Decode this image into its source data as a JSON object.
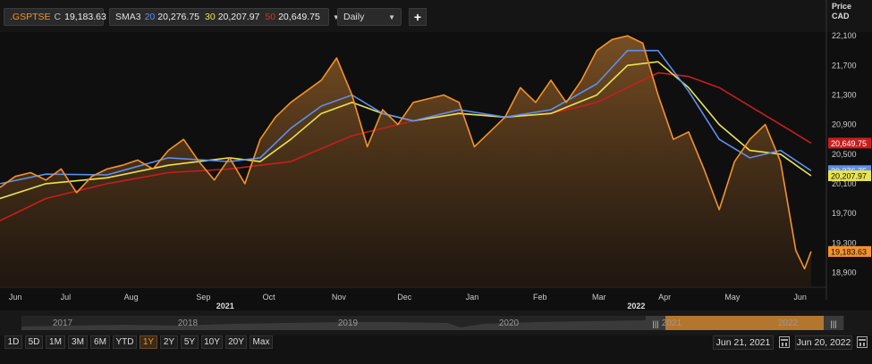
{
  "legend": {
    "symbol": ".GSPTSE",
    "close_prefix": "C",
    "close_value": "19,183.63",
    "sma_label": "SMA3",
    "sma_periods": [
      "20",
      "30",
      "50"
    ],
    "sma_values": [
      "20,276.75",
      "20,207.97",
      "20,649.75"
    ]
  },
  "interval": {
    "selected": "Daily"
  },
  "navigator_years": [
    "2017",
    "2018",
    "2019",
    "2020",
    "2021",
    "2022"
  ],
  "ranges": [
    "1D",
    "5D",
    "1M",
    "3M",
    "6M",
    "YTD",
    "1Y",
    "2Y",
    "5Y",
    "10Y",
    "20Y",
    "Max"
  ],
  "active_range": "1Y",
  "date_from": "Jun 21, 2021",
  "date_to": "Jun 20, 2022",
  "colors": {
    "price": "#f4922b",
    "sma20": "#5c8ff0",
    "sma30": "#e8e450",
    "sma50": "#c81e1e",
    "background": "#0f0f0f"
  },
  "chart_data": {
    "type": "area",
    "title": "",
    "ylabel": "Price",
    "ylabel_unit": "CAD",
    "ylim": [
      18700,
      22150
    ],
    "y_ticks": [
      22100,
      21700,
      21300,
      20900,
      20500,
      20100,
      19700,
      19300,
      18900
    ],
    "y_tick_labels": [
      "22,100",
      "21,700",
      "21,300",
      "20,900",
      "20,500",
      "20,100",
      "19,700",
      "19,300",
      "18,900"
    ],
    "xlim": [
      "2021-06-14",
      "2022-06-27"
    ],
    "x_ticks": [
      {
        "label": "Jun",
        "date": "2021-06-21"
      },
      {
        "label": "Jul",
        "date": "2021-07-14"
      },
      {
        "label": "Aug",
        "date": "2021-08-13"
      },
      {
        "label": "Sep",
        "date": "2021-09-15"
      },
      {
        "label": "Oct",
        "date": "2021-10-15"
      },
      {
        "label": "Nov",
        "date": "2021-11-16"
      },
      {
        "label": "Dec",
        "date": "2021-12-16"
      },
      {
        "label": "Jan",
        "date": "2022-01-16"
      },
      {
        "label": "Feb",
        "date": "2022-02-16"
      },
      {
        "label": "Mar",
        "date": "2022-03-15"
      },
      {
        "label": "Apr",
        "date": "2022-04-14"
      },
      {
        "label": "May",
        "date": "2022-05-15"
      },
      {
        "label": "Jun",
        "date": "2022-06-15"
      }
    ],
    "year_labels": [
      {
        "label": "2021",
        "date": "2021-09-25"
      },
      {
        "label": "2022",
        "date": "2022-04-01"
      }
    ],
    "grid": false,
    "series": [
      {
        "name": ".GSPTSE",
        "style": "area",
        "points": [
          [
            "2021-06-14",
            20050
          ],
          [
            "2021-06-21",
            20200
          ],
          [
            "2021-06-28",
            20250
          ],
          [
            "2021-07-05",
            20150
          ],
          [
            "2021-07-12",
            20300
          ],
          [
            "2021-07-19",
            19980
          ],
          [
            "2021-07-26",
            20200
          ],
          [
            "2021-08-02",
            20300
          ],
          [
            "2021-08-09",
            20350
          ],
          [
            "2021-08-16",
            20420
          ],
          [
            "2021-08-23",
            20300
          ],
          [
            "2021-08-30",
            20550
          ],
          [
            "2021-09-06",
            20700
          ],
          [
            "2021-09-13",
            20400
          ],
          [
            "2021-09-20",
            20150
          ],
          [
            "2021-09-27",
            20450
          ],
          [
            "2021-10-04",
            20100
          ],
          [
            "2021-10-11",
            20700
          ],
          [
            "2021-10-18",
            21000
          ],
          [
            "2021-10-25",
            21200
          ],
          [
            "2021-11-01",
            21350
          ],
          [
            "2021-11-08",
            21500
          ],
          [
            "2021-11-15",
            21800
          ],
          [
            "2021-11-22",
            21300
          ],
          [
            "2021-11-29",
            20600
          ],
          [
            "2021-12-06",
            21100
          ],
          [
            "2021-12-13",
            20900
          ],
          [
            "2021-12-20",
            21200
          ],
          [
            "2021-12-27",
            21250
          ],
          [
            "2022-01-03",
            21300
          ],
          [
            "2022-01-10",
            21200
          ],
          [
            "2022-01-17",
            20600
          ],
          [
            "2022-01-24",
            20800
          ],
          [
            "2022-01-31",
            21000
          ],
          [
            "2022-02-07",
            21400
          ],
          [
            "2022-02-14",
            21200
          ],
          [
            "2022-02-21",
            21500
          ],
          [
            "2022-02-28",
            21200
          ],
          [
            "2022-03-07",
            21500
          ],
          [
            "2022-03-14",
            21900
          ],
          [
            "2022-03-21",
            22050
          ],
          [
            "2022-03-28",
            22100
          ],
          [
            "2022-04-04",
            22000
          ],
          [
            "2022-04-11",
            21300
          ],
          [
            "2022-04-18",
            20700
          ],
          [
            "2022-04-25",
            20800
          ],
          [
            "2022-05-02",
            20300
          ],
          [
            "2022-05-09",
            19750
          ],
          [
            "2022-05-16",
            20400
          ],
          [
            "2022-05-23",
            20700
          ],
          [
            "2022-05-30",
            20900
          ],
          [
            "2022-06-06",
            20400
          ],
          [
            "2022-06-13",
            19200
          ],
          [
            "2022-06-17",
            18950
          ],
          [
            "2022-06-20",
            19183.63
          ]
        ]
      },
      {
        "name": "20",
        "style": "line",
        "points": [
          [
            "2021-06-14",
            20100
          ],
          [
            "2021-07-05",
            20230
          ],
          [
            "2021-08-02",
            20220
          ],
          [
            "2021-08-30",
            20450
          ],
          [
            "2021-09-27",
            20400
          ],
          [
            "2021-10-11",
            20450
          ],
          [
            "2021-10-25",
            20850
          ],
          [
            "2021-11-08",
            21150
          ],
          [
            "2021-11-22",
            21300
          ],
          [
            "2021-12-06",
            21050
          ],
          [
            "2021-12-20",
            20950
          ],
          [
            "2022-01-10",
            21100
          ],
          [
            "2022-01-31",
            21000
          ],
          [
            "2022-02-21",
            21100
          ],
          [
            "2022-03-14",
            21450
          ],
          [
            "2022-03-28",
            21900
          ],
          [
            "2022-04-11",
            21900
          ],
          [
            "2022-04-25",
            21350
          ],
          [
            "2022-05-09",
            20700
          ],
          [
            "2022-05-23",
            20450
          ],
          [
            "2022-06-06",
            20550
          ],
          [
            "2022-06-20",
            20276.75
          ]
        ]
      },
      {
        "name": "30",
        "style": "line",
        "points": [
          [
            "2021-06-14",
            19900
          ],
          [
            "2021-07-05",
            20100
          ],
          [
            "2021-08-02",
            20180
          ],
          [
            "2021-08-30",
            20350
          ],
          [
            "2021-09-27",
            20450
          ],
          [
            "2021-10-11",
            20400
          ],
          [
            "2021-10-25",
            20700
          ],
          [
            "2021-11-08",
            21050
          ],
          [
            "2021-11-22",
            21200
          ],
          [
            "2021-12-06",
            21050
          ],
          [
            "2021-12-20",
            20950
          ],
          [
            "2022-01-10",
            21050
          ],
          [
            "2022-01-31",
            21000
          ],
          [
            "2022-02-21",
            21050
          ],
          [
            "2022-03-14",
            21300
          ],
          [
            "2022-03-28",
            21700
          ],
          [
            "2022-04-11",
            21750
          ],
          [
            "2022-04-25",
            21400
          ],
          [
            "2022-05-09",
            20900
          ],
          [
            "2022-05-23",
            20550
          ],
          [
            "2022-06-06",
            20500
          ],
          [
            "2022-06-20",
            20207.97
          ]
        ]
      },
      {
        "name": "50",
        "style": "line",
        "points": [
          [
            "2021-06-14",
            19600
          ],
          [
            "2021-07-05",
            19900
          ],
          [
            "2021-08-02",
            20100
          ],
          [
            "2021-08-30",
            20250
          ],
          [
            "2021-09-27",
            20300
          ],
          [
            "2021-10-25",
            20400
          ],
          [
            "2021-11-22",
            20750
          ],
          [
            "2021-12-20",
            20950
          ],
          [
            "2022-01-10",
            21050
          ],
          [
            "2022-01-31",
            21000
          ],
          [
            "2022-02-21",
            21050
          ],
          [
            "2022-03-14",
            21200
          ],
          [
            "2022-03-28",
            21400
          ],
          [
            "2022-04-11",
            21600
          ],
          [
            "2022-04-25",
            21550
          ],
          [
            "2022-05-09",
            21400
          ],
          [
            "2022-05-23",
            21150
          ],
          [
            "2022-06-06",
            20900
          ],
          [
            "2022-06-20",
            20649.75
          ]
        ]
      }
    ]
  }
}
